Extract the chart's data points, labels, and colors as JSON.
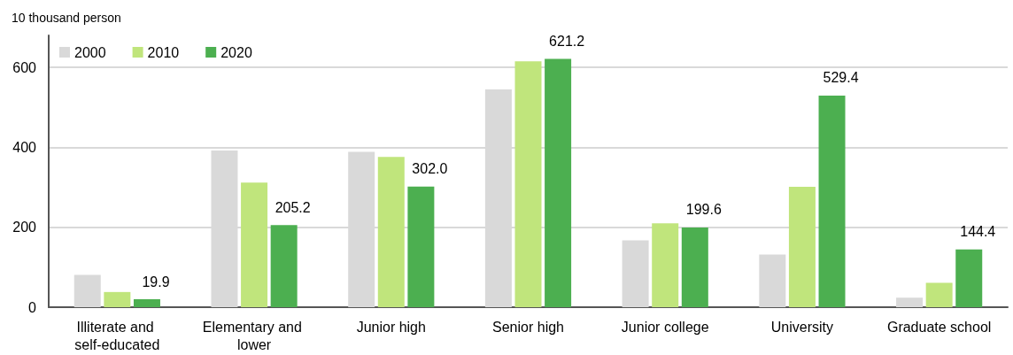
{
  "chart_data": {
    "type": "bar",
    "ylabel": "10 thousand person",
    "categories": [
      "Illiterate and self-educated",
      "Elementary and lower",
      "Junior high",
      "Senior high",
      "Junior college",
      "University",
      "Graduate school"
    ],
    "series": [
      {
        "name": "2000",
        "color": "#d9d9d9",
        "values": [
          81,
          392,
          389,
          545,
          167,
          132,
          24
        ]
      },
      {
        "name": "2010",
        "color": "#c0e57c",
        "values": [
          38,
          312,
          376,
          615,
          210,
          301,
          61
        ]
      },
      {
        "name": "2020",
        "color": "#4caf50",
        "values": [
          19.9,
          205.2,
          302.0,
          621.2,
          199.6,
          529.4,
          144.4
        ],
        "value_labels": [
          "19.9",
          "205.2",
          "302.0",
          "621.2",
          "199.6",
          "529.4",
          "144.4"
        ]
      }
    ],
    "ylim": [
      0,
      680
    ],
    "yticks": [
      0,
      200,
      400,
      600
    ],
    "grid": "y",
    "legend": "top left"
  }
}
